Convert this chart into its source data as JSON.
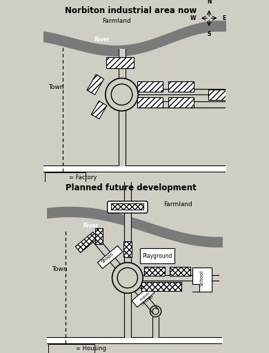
{
  "bg_color": "#d0cdc5",
  "map1_title": "Norbiton industrial area now",
  "map2_title": "Planned future development",
  "legend1_text": "= Factory",
  "legend2_text": "= Housing",
  "river_label": "River",
  "farmland_label1": "Farmland",
  "farmland_label2": "Farmland",
  "town_label": "Town"
}
